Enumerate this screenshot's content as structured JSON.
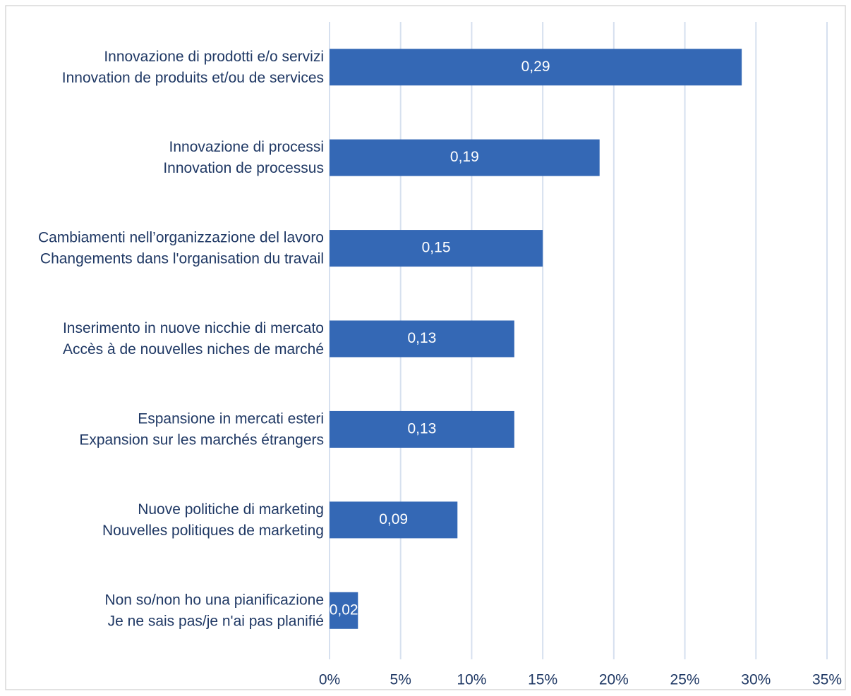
{
  "chart_data": {
    "type": "hbar",
    "categories": [
      [
        "Innovazione di prodotti e/o servizi",
        "Innovation de produits et/ou de services"
      ],
      [
        "Innovazione di processi",
        "Innovation de processus"
      ],
      [
        "Cambiamenti nell’organizzazione del lavoro",
        "Changements dans l'organisation du travail"
      ],
      [
        "Inserimento in nuove nicchie di mercato",
        "Accès à de nouvelles niches de marché"
      ],
      [
        "Espansione in mercati esteri",
        "Expansion sur les marchés étrangers"
      ],
      [
        "Nuove politiche di marketing",
        "Nouvelles politiques de marketing"
      ],
      [
        "Non so/non ho una pianificazione",
        "Je ne sais pas/je n'ai pas planifié"
      ]
    ],
    "values": [
      29,
      19,
      15,
      13,
      13,
      9,
      2
    ],
    "value_labels": [
      "0,29",
      "0,19",
      "0,15",
      "0,13",
      "0,13",
      "0,09",
      "0,02"
    ],
    "color": "#3468b5",
    "xlim": [
      0,
      35
    ],
    "xticks": [
      {
        "value": 0,
        "label": "0%"
      },
      {
        "value": 5,
        "label": "5%"
      },
      {
        "value": 10,
        "label": "10%"
      },
      {
        "value": 15,
        "label": "15%"
      },
      {
        "value": 20,
        "label": "20%"
      },
      {
        "value": 25,
        "label": "25%"
      },
      {
        "value": 30,
        "label": "30%"
      },
      {
        "value": 35,
        "label": "35%"
      }
    ],
    "grid": true
  }
}
